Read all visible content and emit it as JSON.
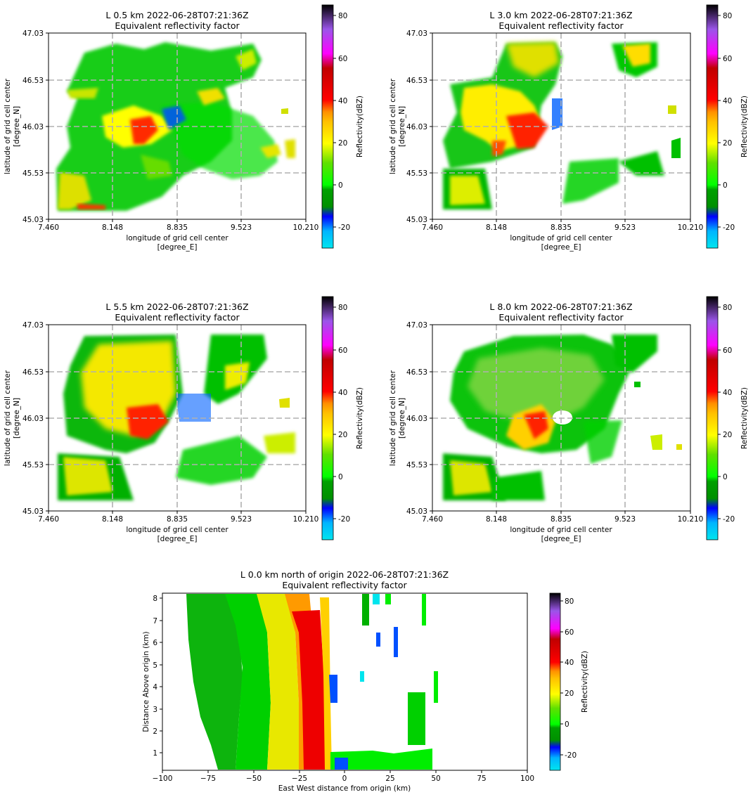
{
  "chart_data": [
    {
      "type": "heatmap",
      "title_line1": "L 0.5 km 2022-06-28T07:21:36Z",
      "title_line2": "Equivalent reflectivity factor",
      "xlabel_line1": "longitude of grid cell center",
      "xlabel_line2": "[degree_E]",
      "ylabel_line1": "latitude of grid cell center",
      "ylabel_line2": "[degree_N]",
      "x_ticks": [
        "7.460",
        "8.148",
        "8.835",
        "9.523",
        "10.210"
      ],
      "y_ticks": [
        "45.03",
        "45.53",
        "46.03",
        "46.53",
        "47.03"
      ],
      "xlim": [
        7.46,
        10.21
      ],
      "ylim": [
        45.03,
        47.03
      ],
      "grid": "dashed",
      "colorbar_label": "Reflectivity(dBZ)",
      "colorbar_ticks": [
        "-20",
        "0",
        "20",
        "40",
        "60",
        "80"
      ],
      "colorbar_range": [
        -30,
        85
      ]
    },
    {
      "type": "heatmap",
      "title_line1": "L 3.0 km 2022-06-28T07:21:36Z",
      "title_line2": "Equivalent reflectivity factor",
      "xlabel_line1": "longitude of grid cell center",
      "xlabel_line2": "[degree_E]",
      "ylabel_line1": "latitude of grid cell center",
      "ylabel_line2": "[degree_N]",
      "x_ticks": [
        "7.460",
        "8.148",
        "8.835",
        "9.523",
        "10.210"
      ],
      "y_ticks": [
        "45.03",
        "45.53",
        "46.03",
        "46.53",
        "47.03"
      ],
      "xlim": [
        7.46,
        10.21
      ],
      "ylim": [
        45.03,
        47.03
      ],
      "grid": "dashed",
      "colorbar_label": "Reflectivity(dBZ)",
      "colorbar_ticks": [
        "-20",
        "0",
        "20",
        "40",
        "60",
        "80"
      ],
      "colorbar_range": [
        -30,
        85
      ]
    },
    {
      "type": "heatmap",
      "title_line1": "L 5.5 km 2022-06-28T07:21:36Z",
      "title_line2": "Equivalent reflectivity factor",
      "xlabel_line1": "longitude of grid cell center",
      "xlabel_line2": "[degree_E]",
      "ylabel_line1": "latitude of grid cell center",
      "ylabel_line2": "[degree_N]",
      "x_ticks": [
        "7.460",
        "8.148",
        "8.835",
        "9.523",
        "10.210"
      ],
      "y_ticks": [
        "45.03",
        "45.53",
        "46.03",
        "46.53",
        "47.03"
      ],
      "xlim": [
        7.46,
        10.21
      ],
      "ylim": [
        45.03,
        47.03
      ],
      "grid": "dashed",
      "colorbar_label": "Reflectivity(dBZ)",
      "colorbar_ticks": [
        "-20",
        "0",
        "20",
        "40",
        "60",
        "80"
      ],
      "colorbar_range": [
        -30,
        85
      ]
    },
    {
      "type": "heatmap",
      "title_line1": "L 8.0 km 2022-06-28T07:21:36Z",
      "title_line2": "Equivalent reflectivity factor",
      "xlabel_line1": "longitude of grid cell center",
      "xlabel_line2": "[degree_E]",
      "ylabel_line1": "latitude of grid cell center",
      "ylabel_line2": "[degree_N]",
      "x_ticks": [
        "7.460",
        "8.148",
        "8.835",
        "9.523",
        "10.210"
      ],
      "y_ticks": [
        "45.03",
        "45.53",
        "46.03",
        "46.53",
        "47.03"
      ],
      "xlim": [
        7.46,
        10.21
      ],
      "ylim": [
        45.03,
        47.03
      ],
      "grid": "dashed",
      "colorbar_label": "Reflectivity(dBZ)",
      "colorbar_ticks": [
        "-20",
        "0",
        "20",
        "40",
        "60",
        "80"
      ],
      "colorbar_range": [
        -30,
        85
      ]
    },
    {
      "type": "heatmap",
      "title_line1": "L 0.0 km north of origin 2022-06-28T07:21:36Z",
      "title_line2": "Equivalent reflectivity factor",
      "xlabel": "East West distance from origin (km)",
      "ylabel": "Distance Above origin (km)",
      "x_ticks": [
        "−100",
        "−75",
        "−50",
        "−25",
        "0",
        "25",
        "50",
        "75",
        "100"
      ],
      "y_ticks": [
        "1",
        "2",
        "3",
        "4",
        "5",
        "6",
        "7",
        "8"
      ],
      "xlim": [
        -100,
        100
      ],
      "ylim": [
        0.2,
        8.2
      ],
      "colorbar_label": "Reflectivity(dBZ)",
      "colorbar_ticks": [
        "-20",
        "0",
        "20",
        "40",
        "60",
        "80"
      ],
      "colorbar_range": [
        -30,
        85
      ]
    }
  ],
  "colors": {
    "colormap": [
      "#00e5ee",
      "#0096ff",
      "#0000ff",
      "#00a000",
      "#00d000",
      "#00ff00",
      "#80e000",
      "#ffff00",
      "#ffd000",
      "#ffa000",
      "#ff0000",
      "#c00000",
      "#ff00ff",
      "#9955ff",
      "#000000"
    ]
  }
}
